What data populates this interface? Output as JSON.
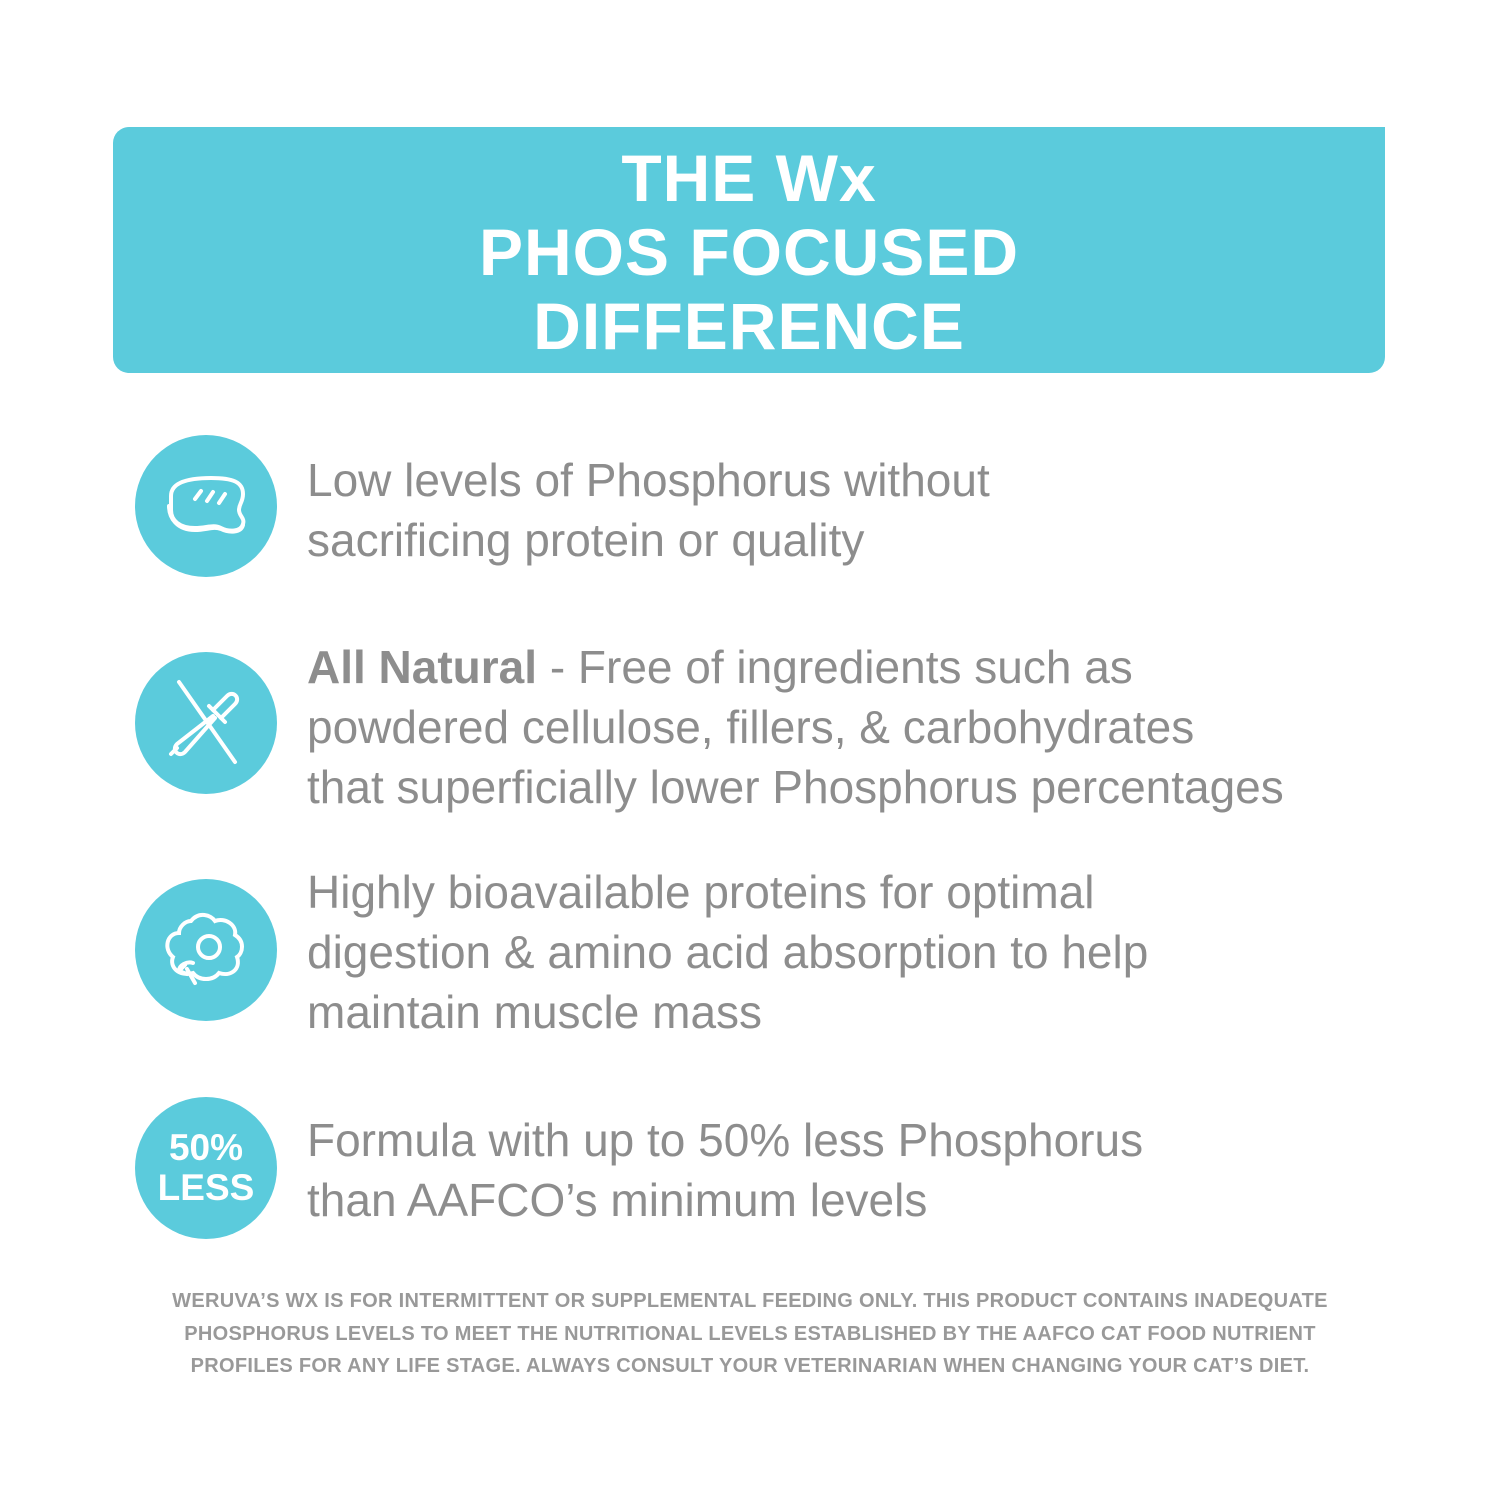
{
  "colors": {
    "accent": "#5bcbdc",
    "text": "#8d8d8d"
  },
  "header": {
    "lines": [
      "THE Wx",
      "PHOS FOCUSED",
      "DIFFERENCE"
    ]
  },
  "features": [
    {
      "icon": "steak-icon",
      "lines": [
        "Low levels of Phosphorus without",
        "sacrificing protein or quality"
      ]
    },
    {
      "icon": "no-dropper-icon",
      "bold": "All Natural",
      "lines": [
        " - Free of ingredients such as",
        "powdered cellulose, fillers, & carbohydrates",
        "that superficially lower Phosphorus percentages"
      ]
    },
    {
      "icon": "egg-icon",
      "lines": [
        "Highly bioavailable proteins for optimal",
        "digestion & amino acid absorption to help",
        "maintain muscle mass"
      ]
    },
    {
      "icon": "percent-badge",
      "badge": [
        "50%",
        "LESS"
      ],
      "lines": [
        "Formula with up to 50% less Phosphorus",
        "than AAFCO’s minimum levels"
      ]
    }
  ],
  "disclaimer": [
    "WERUVA’S WX IS FOR INTERMITTENT OR SUPPLEMENTAL FEEDING ONLY. THIS PRODUCT CONTAINS INADEQUATE",
    "PHOSPHORUS LEVELS TO MEET THE NUTRITIONAL LEVELS ESTABLISHED BY THE AAFCO CAT FOOD NUTRIENT",
    "PROFILES FOR ANY LIFE STAGE. ALWAYS CONSULT YOUR VETERINARIAN WHEN CHANGING YOUR CAT’S DIET."
  ]
}
